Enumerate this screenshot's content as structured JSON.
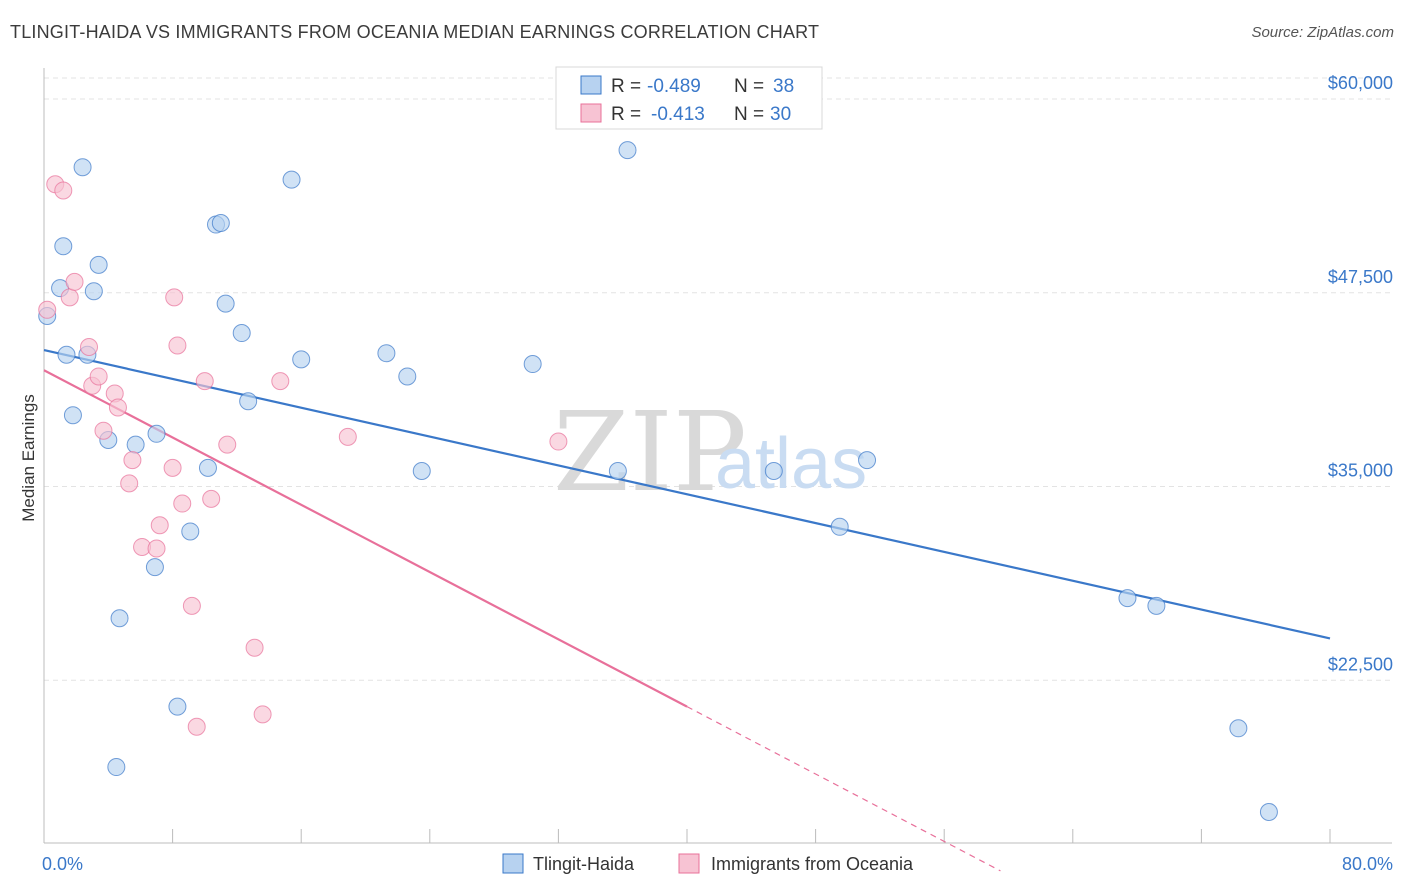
{
  "title": "TLINGIT-HAIDA VS IMMIGRANTS FROM OCEANIA MEDIAN EARNINGS CORRELATION CHART",
  "source": "Source: ZipAtlas.com",
  "watermark": {
    "zip": "ZIP",
    "atlas": "atlas"
  },
  "colors": {
    "blue": "#3a78c9",
    "blue_fill": "#b7d2f0",
    "pink": "#e8709a",
    "pink_fill": "#f7c3d3",
    "grid": "#e3e3e3"
  },
  "legend": {
    "rows": [
      {
        "r_label": "R =",
        "r_value": "-0.489",
        "n_label": "N =",
        "n_value": "38"
      },
      {
        "r_label": "R =",
        "r_value": "-0.413",
        "n_label": "N =",
        "n_value": "30"
      }
    ]
  },
  "chart_data": {
    "type": "scatter",
    "title": "TLINGIT-HAIDA VS IMMIGRANTS FROM OCEANIA MEDIAN EARNINGS CORRELATION CHART",
    "xlabel": "",
    "ylabel": "Median Earnings",
    "xlim": [
      0,
      80
    ],
    "ylim": [
      12000,
      62000
    ],
    "x_tick_labels": [
      "0.0%",
      "80.0%"
    ],
    "y_ticks": [
      22500,
      35000,
      47500,
      60000
    ],
    "y_tick_labels": [
      "$22,500",
      "$35,000",
      "$47,500",
      "$60,000"
    ],
    "series": [
      {
        "name": "Tlingit-Haida",
        "trend": {
          "x": [
            0,
            80
          ],
          "y": [
            43800,
            25200
          ]
        },
        "points": [
          [
            0.2,
            46000
          ],
          [
            1.0,
            47800
          ],
          [
            1.2,
            50500
          ],
          [
            1.4,
            43500
          ],
          [
            2.4,
            55600
          ],
          [
            2.7,
            43500
          ],
          [
            3.1,
            47600
          ],
          [
            3.4,
            49300
          ],
          [
            1.8,
            39600
          ],
          [
            4.0,
            38000
          ],
          [
            4.7,
            26500
          ],
          [
            4.5,
            16900
          ],
          [
            5.7,
            37700
          ],
          [
            6.9,
            29800
          ],
          [
            7.0,
            38400
          ],
          [
            8.3,
            20800
          ],
          [
            9.1,
            32100
          ],
          [
            10.2,
            36200
          ],
          [
            10.7,
            51900
          ],
          [
            11.0,
            52000
          ],
          [
            11.3,
            46800
          ],
          [
            12.3,
            44900
          ],
          [
            12.7,
            40500
          ],
          [
            15.4,
            54800
          ],
          [
            16.0,
            43200
          ],
          [
            21.3,
            43600
          ],
          [
            22.6,
            42100
          ],
          [
            23.5,
            36000
          ],
          [
            30.4,
            42900
          ],
          [
            35.7,
            36000
          ],
          [
            36.3,
            56700
          ],
          [
            45.4,
            36000
          ],
          [
            49.5,
            32400
          ],
          [
            51.2,
            36700
          ],
          [
            67.4,
            27800
          ],
          [
            69.2,
            27300
          ],
          [
            74.3,
            19400
          ],
          [
            76.2,
            14000
          ]
        ]
      },
      {
        "name": "Immigrants from Oceania",
        "trend": {
          "x": [
            0,
            40
          ],
          "y": [
            42500,
            20800
          ]
        },
        "trend_dashed": {
          "x": [
            40,
            59.5
          ],
          "y": [
            20800,
            10200
          ]
        },
        "points": [
          [
            0.2,
            46400
          ],
          [
            0.7,
            54500
          ],
          [
            1.2,
            54100
          ],
          [
            1.6,
            47200
          ],
          [
            1.9,
            48200
          ],
          [
            2.8,
            44000
          ],
          [
            3.0,
            41500
          ],
          [
            3.4,
            42100
          ],
          [
            3.7,
            38600
          ],
          [
            4.4,
            41000
          ],
          [
            4.6,
            40100
          ],
          [
            5.3,
            35200
          ],
          [
            5.5,
            36700
          ],
          [
            6.1,
            31100
          ],
          [
            7.0,
            31000
          ],
          [
            7.2,
            32500
          ],
          [
            8.0,
            36200
          ],
          [
            8.1,
            47200
          ],
          [
            8.3,
            44100
          ],
          [
            8.6,
            33900
          ],
          [
            9.2,
            27300
          ],
          [
            9.5,
            19500
          ],
          [
            10.0,
            41800
          ],
          [
            10.4,
            34200
          ],
          [
            11.4,
            37700
          ],
          [
            13.1,
            24600
          ],
          [
            13.6,
            20300
          ],
          [
            14.7,
            41800
          ],
          [
            18.9,
            38200
          ],
          [
            32.0,
            37900
          ]
        ]
      }
    ]
  },
  "bottom_legend": [
    {
      "label": "Tlingit-Haida"
    },
    {
      "label": "Immigrants from Oceania"
    }
  ]
}
